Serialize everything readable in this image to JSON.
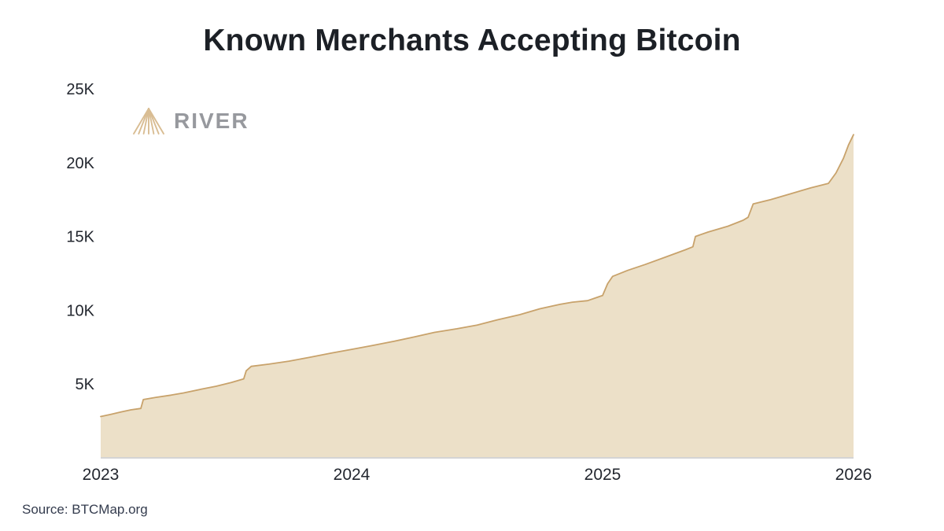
{
  "title": "Known Merchants Accepting Bitcoin",
  "source": "Source: BTCMap.org",
  "logo": {
    "text": "RIVER"
  },
  "colors": {
    "area_fill": "#ece0c8",
    "line": "#c8a26b",
    "axis_line": "#d4d4d4",
    "tick_text": "#23272f",
    "logo_icon": "#d9bd93",
    "logo_text": "#97999e"
  },
  "chart_data": {
    "type": "area",
    "title": "Known Merchants Accepting Bitcoin",
    "series_name": "Known merchants accepting bitcoin",
    "source": "BTCMap.org",
    "xlim": [
      2023,
      2026
    ],
    "ylim": [
      0,
      25000
    ],
    "grid": false,
    "legend": "none",
    "xticks": {
      "values": [
        2023,
        2024,
        2025,
        2026
      ],
      "labels": [
        "2023",
        "2024",
        "2025",
        "2026"
      ]
    },
    "yticks": {
      "values": [
        5000,
        10000,
        15000,
        20000,
        25000
      ],
      "labels": [
        "5K",
        "10K",
        "15K",
        "20K",
        "25K"
      ]
    },
    "points": [
      [
        2023.0,
        2800
      ],
      [
        2023.04,
        2950
      ],
      [
        2023.08,
        3100
      ],
      [
        2023.12,
        3250
      ],
      [
        2023.16,
        3350
      ],
      [
        2023.17,
        3950
      ],
      [
        2023.22,
        4100
      ],
      [
        2023.28,
        4250
      ],
      [
        2023.33,
        4400
      ],
      [
        2023.4,
        4650
      ],
      [
        2023.46,
        4850
      ],
      [
        2023.52,
        5100
      ],
      [
        2023.57,
        5350
      ],
      [
        2023.58,
        5900
      ],
      [
        2023.6,
        6200
      ],
      [
        2023.67,
        6350
      ],
      [
        2023.75,
        6550
      ],
      [
        2023.83,
        6800
      ],
      [
        2023.92,
        7100
      ],
      [
        2024.0,
        7350
      ],
      [
        2024.08,
        7600
      ],
      [
        2024.17,
        7900
      ],
      [
        2024.25,
        8200
      ],
      [
        2024.33,
        8500
      ],
      [
        2024.42,
        8750
      ],
      [
        2024.5,
        9000
      ],
      [
        2024.58,
        9350
      ],
      [
        2024.67,
        9700
      ],
      [
        2024.75,
        10100
      ],
      [
        2024.83,
        10400
      ],
      [
        2024.88,
        10550
      ],
      [
        2024.94,
        10650
      ],
      [
        2025.0,
        11000
      ],
      [
        2025.02,
        11800
      ],
      [
        2025.04,
        12300
      ],
      [
        2025.1,
        12700
      ],
      [
        2025.17,
        13100
      ],
      [
        2025.25,
        13600
      ],
      [
        2025.33,
        14100
      ],
      [
        2025.36,
        14300
      ],
      [
        2025.37,
        15000
      ],
      [
        2025.42,
        15300
      ],
      [
        2025.5,
        15700
      ],
      [
        2025.56,
        16100
      ],
      [
        2025.58,
        16300
      ],
      [
        2025.6,
        17200
      ],
      [
        2025.67,
        17500
      ],
      [
        2025.75,
        17900
      ],
      [
        2025.83,
        18300
      ],
      [
        2025.9,
        18600
      ],
      [
        2025.93,
        19300
      ],
      [
        2025.96,
        20300
      ],
      [
        2025.98,
        21200
      ],
      [
        2026.0,
        21900
      ]
    ]
  }
}
